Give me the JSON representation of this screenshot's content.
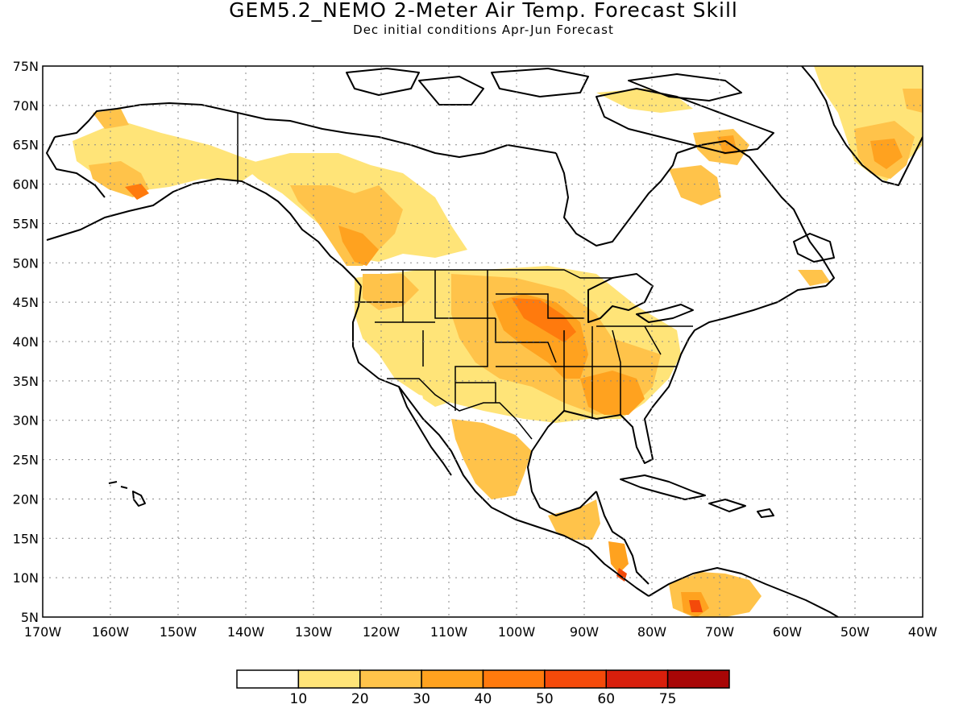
{
  "title": "GEM5.2_NEMO 2-Meter Air Temp. Forecast Skill",
  "subtitle": "Dec initial conditions  Apr-Jun Forecast",
  "map": {
    "lon_range": [
      -170,
      -40
    ],
    "lat_range": [
      5,
      75
    ],
    "lat_labels": [
      "75N",
      "70N",
      "65N",
      "60N",
      "55N",
      "50N",
      "45N",
      "40N",
      "35N",
      "30N",
      "25N",
      "20N",
      "15N",
      "10N",
      "5N"
    ],
    "lon_labels": [
      "170W",
      "160W",
      "150W",
      "140W",
      "130W",
      "120W",
      "110W",
      "100W",
      "90W",
      "80W",
      "70W",
      "60W",
      "50W",
      "40W"
    ],
    "grid": true
  },
  "colorbar": {
    "colors": [
      "#ffffff",
      "#ffe478",
      "#ffc34a",
      "#ffa21f",
      "#ff7a0d",
      "#f44a0a",
      "#d81f0c",
      "#a80606"
    ],
    "labels": [
      "10",
      "20",
      "30",
      "40",
      "50",
      "60",
      "75"
    ]
  }
}
